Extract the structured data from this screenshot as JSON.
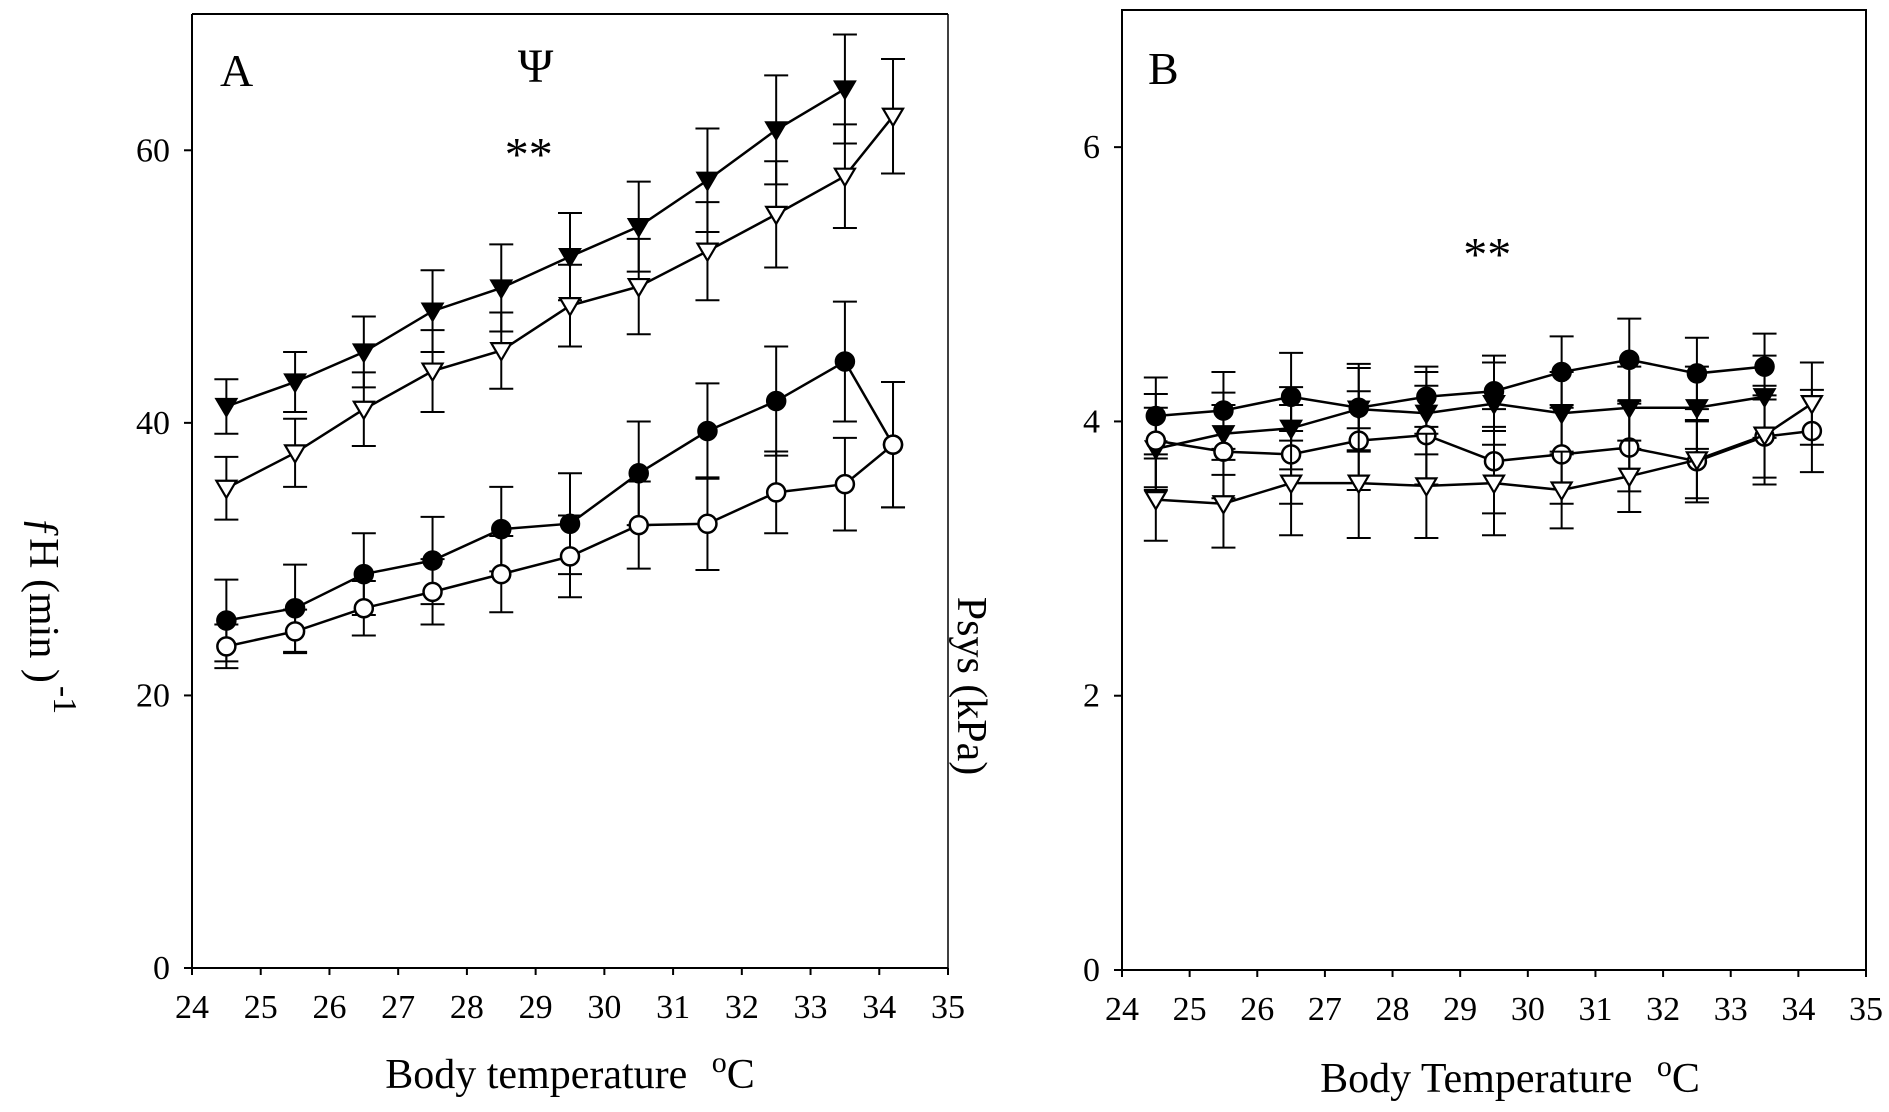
{
  "chart_data": [
    {
      "panel": "A",
      "type": "line",
      "panel_label": "A",
      "xlabel": "Body temperature",
      "xlabel_unit": "oC",
      "ylabel_left": "ƒH (min )",
      "ylabel_left_sup": "-1",
      "ylabel_right": "Psys (kPa)",
      "xlim": [
        24,
        35
      ],
      "ylim": [
        0,
        70
      ],
      "xticks": [
        "24",
        "25",
        "26",
        "27",
        "28",
        "29",
        "30",
        "31",
        "32",
        "33",
        "34",
        "35"
      ],
      "yticks": [
        "0",
        "20",
        "40",
        "60"
      ],
      "ytick_values": [
        0,
        20,
        40,
        60
      ],
      "annotations": [
        {
          "text": "Ψ",
          "x": 29.0,
          "y": 65
        },
        {
          "text": "**",
          "x": 28.9,
          "y": 58.5
        }
      ],
      "grid": false,
      "series": [
        {
          "marker": "triangle-down-filled",
          "x": [
            24.5,
            25.5,
            26.5,
            27.5,
            28.5,
            29.5,
            30.5,
            31.5,
            32.5,
            33.5
          ],
          "y": [
            41.2,
            43.0,
            45.2,
            48.2,
            49.9,
            52.2,
            54.4,
            57.8,
            61.5,
            64.5
          ],
          "err": [
            2.0,
            2.2,
            2.6,
            3.0,
            3.2,
            3.2,
            3.3,
            3.8,
            4.0,
            4.0
          ]
        },
        {
          "marker": "triangle-down-open",
          "x": [
            24.5,
            25.5,
            26.5,
            27.5,
            28.5,
            29.5,
            30.5,
            31.5,
            32.5,
            33.5,
            34.2
          ],
          "y": [
            35.2,
            37.8,
            41.0,
            43.8,
            45.3,
            48.6,
            50.0,
            52.6,
            55.3,
            58.1,
            62.5
          ],
          "err": [
            2.3,
            2.5,
            2.7,
            3.0,
            2.8,
            3.0,
            3.5,
            3.6,
            3.9,
            3.8,
            4.2
          ]
        },
        {
          "marker": "circle-filled",
          "x": [
            24.5,
            25.5,
            26.5,
            27.5,
            28.5,
            29.5,
            30.5,
            31.5,
            32.5,
            33.5,
            34.2
          ],
          "y": [
            25.5,
            26.4,
            28.9,
            29.9,
            32.2,
            32.6,
            36.3,
            39.4,
            41.6,
            44.5,
            38.4
          ],
          "err": [
            3.0,
            3.2,
            3.0,
            3.2,
            3.1,
            3.7,
            3.8,
            3.5,
            4.0,
            4.4,
            4.6
          ]
        },
        {
          "marker": "circle-open",
          "x": [
            24.5,
            25.5,
            26.5,
            27.5,
            28.5,
            29.5,
            30.5,
            31.5,
            32.5,
            33.5,
            34.2
          ],
          "y": [
            23.6,
            24.7,
            26.4,
            27.6,
            28.9,
            30.2,
            32.5,
            32.6,
            34.9,
            35.5,
            38.4
          ],
          "err": [
            1.6,
            1.6,
            2.0,
            2.4,
            2.8,
            3.0,
            3.2,
            3.4,
            3.0,
            3.4,
            4.6
          ]
        }
      ]
    },
    {
      "panel": "B",
      "type": "line",
      "panel_label": "B",
      "xlabel": "Body Temperature",
      "xlabel_unit": "oC",
      "xlim": [
        24,
        35
      ],
      "ylim": [
        0,
        7
      ],
      "xticks": [
        "24",
        "25",
        "26",
        "27",
        "28",
        "29",
        "30",
        "31",
        "32",
        "33",
        "34",
        "35"
      ],
      "yticks": [
        "0",
        "2",
        "4",
        "6"
      ],
      "ytick_values": [
        0,
        2,
        4,
        6
      ],
      "annotations": [
        {
          "text": "**",
          "x": 29.4,
          "y": 5.1
        }
      ],
      "grid": false,
      "series": [
        {
          "marker": "circle-filled",
          "x": [
            24.5,
            25.5,
            26.5,
            27.5,
            28.5,
            29.5,
            30.5,
            31.5,
            32.5,
            33.5
          ],
          "y": [
            4.04,
            4.08,
            4.18,
            4.1,
            4.18,
            4.22,
            4.36,
            4.45,
            4.35,
            4.4
          ],
          "err": [
            0.28,
            0.28,
            0.32,
            0.32,
            0.22,
            0.26,
            0.26,
            0.3,
            0.26,
            0.24
          ]
        },
        {
          "marker": "triangle-down-filled",
          "x": [
            24.5,
            25.5,
            26.5,
            27.5,
            28.5,
            29.5,
            30.5,
            31.5,
            32.5,
            33.5
          ],
          "y": [
            3.8,
            3.91,
            3.95,
            4.09,
            4.06,
            4.13,
            4.06,
            4.1,
            4.1,
            4.18
          ],
          "err": [
            0.3,
            0.3,
            0.3,
            0.3,
            0.3,
            0.3,
            0.3,
            0.3,
            0.3,
            0.3
          ]
        },
        {
          "marker": "circle-open",
          "x": [
            24.5,
            25.5,
            26.5,
            27.5,
            28.5,
            29.5,
            30.5,
            31.5,
            32.5,
            33.5,
            34.2
          ],
          "y": [
            3.86,
            3.78,
            3.76,
            3.86,
            3.9,
            3.71,
            3.76,
            3.81,
            3.71,
            3.89,
            3.93
          ],
          "err": [
            0.34,
            0.34,
            0.36,
            0.36,
            0.36,
            0.38,
            0.36,
            0.32,
            0.3,
            0.3,
            0.3
          ]
        },
        {
          "marker": "triangle-down-open",
          "x": [
            24.5,
            25.5,
            26.5,
            27.5,
            28.5,
            29.5,
            30.5,
            31.5,
            32.5,
            33.5,
            34.2
          ],
          "y": [
            3.43,
            3.4,
            3.55,
            3.55,
            3.53,
            3.55,
            3.5,
            3.6,
            3.72,
            3.9,
            4.13
          ],
          "err": [
            0.3,
            0.32,
            0.38,
            0.4,
            0.38,
            0.38,
            0.28,
            0.26,
            0.28,
            0.36,
            0.3
          ]
        }
      ]
    }
  ]
}
